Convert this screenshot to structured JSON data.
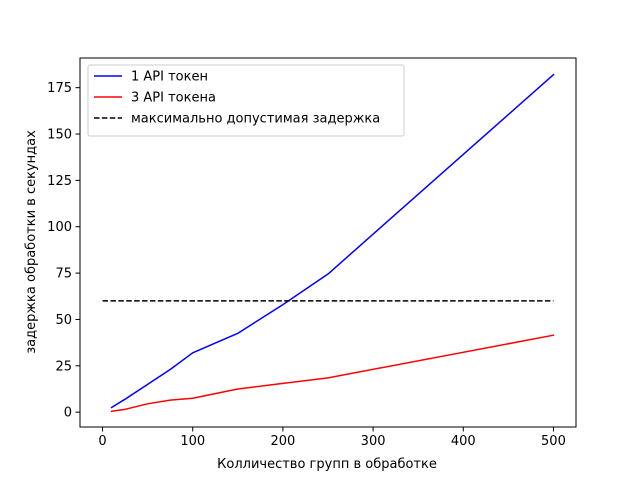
{
  "chart_data": {
    "type": "line",
    "title": "",
    "xlabel": "Колличество групп в обработке",
    "ylabel": "задержка обработки в секундах",
    "xlim": [
      -25,
      525
    ],
    "ylim": [
      -8,
      191
    ],
    "xticks": [
      0,
      100,
      200,
      300,
      400,
      500
    ],
    "yticks": [
      0,
      25,
      50,
      75,
      100,
      125,
      150,
      175
    ],
    "grid": false,
    "legend_position": "upper left",
    "series": [
      {
        "name": "1 API токен",
        "color": "#0000ff",
        "style": "solid",
        "x": [
          10,
          25,
          50,
          75,
          100,
          150,
          200,
          250,
          500
        ],
        "y": [
          2.5,
          7,
          15,
          23,
          32,
          42.5,
          58,
          74.5,
          182
        ]
      },
      {
        "name": "3 API токена",
        "color": "#ff0000",
        "style": "solid",
        "x": [
          10,
          25,
          50,
          75,
          100,
          150,
          200,
          250,
          500
        ],
        "y": [
          0.5,
          1.5,
          4.5,
          6.5,
          7.5,
          12.5,
          15.5,
          18.5,
          41.5
        ]
      },
      {
        "name": "максимально допустимая задержка",
        "color": "#000000",
        "style": "dashed",
        "x": [
          0,
          500
        ],
        "y": [
          60,
          60
        ]
      }
    ]
  }
}
